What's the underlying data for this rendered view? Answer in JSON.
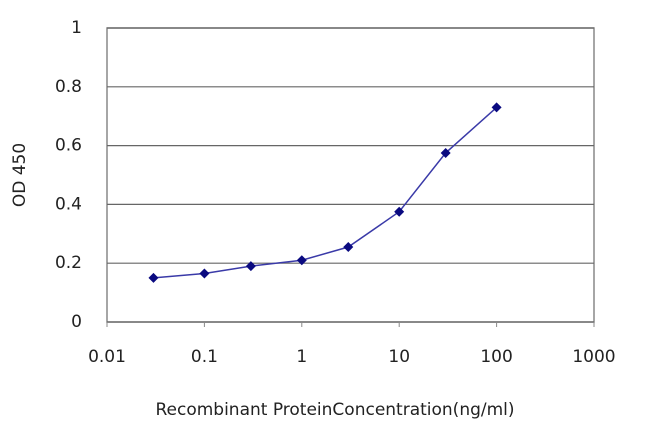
{
  "chart_data": {
    "type": "line",
    "x_label": "Recombinant ProteinConcentration(ng/ml)",
    "y_label": "OD 450",
    "x": [
      0.03,
      0.1,
      0.3,
      1,
      3,
      10,
      30,
      100
    ],
    "series": [
      {
        "name": "OD 450",
        "color": "#3a3aa8",
        "marker_color": "#0a0a80",
        "values": [
          0.15,
          0.165,
          0.19,
          0.21,
          0.255,
          0.375,
          0.575,
          0.73
        ]
      }
    ],
    "xlim": [
      0.01,
      1000
    ],
    "xticks": [
      0.01,
      0.1,
      1,
      10,
      100,
      1000
    ],
    "xscale": "log",
    "ylim": [
      0,
      1
    ],
    "yticks": [
      0,
      0.2,
      0.4,
      0.6,
      0.8,
      1
    ],
    "grid": true
  }
}
